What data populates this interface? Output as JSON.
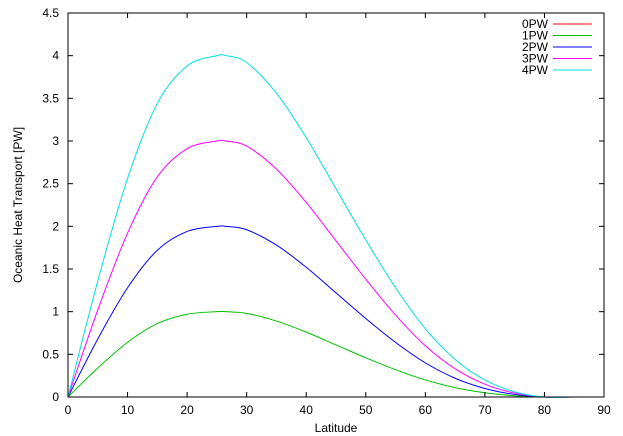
{
  "chart_data": {
    "type": "line",
    "xlabel": "Latitude",
    "ylabel": "Oceanic Heat Transport [PW]",
    "xlim": [
      0,
      90
    ],
    "ylim": [
      0,
      4.5
    ],
    "xticks": [
      "0",
      "10",
      "20",
      "30",
      "40",
      "50",
      "60",
      "70",
      "80",
      "90"
    ],
    "yticks": [
      "0",
      "0.5",
      "1",
      "1.5",
      "2",
      "2.5",
      "3",
      "3.5",
      "4",
      "4.5"
    ],
    "grid": false,
    "legend_position": "top-right",
    "x": [
      0,
      5,
      10,
      15,
      20,
      25,
      26.5,
      30,
      35,
      40,
      45,
      50,
      55,
      60,
      65,
      70,
      75,
      80,
      85,
      90
    ],
    "series": [
      {
        "name": "0PW",
        "color": "#ff0000",
        "values": [
          0,
          0,
          0,
          0,
          0,
          0,
          0,
          0,
          0,
          0,
          0,
          0,
          0,
          0,
          0,
          0,
          0,
          0,
          0,
          0
        ]
      },
      {
        "name": "1PW",
        "color": "#00c000",
        "values": [
          0,
          0.34,
          0.64,
          0.86,
          0.97,
          1.0,
          1.0,
          0.98,
          0.89,
          0.76,
          0.61,
          0.46,
          0.32,
          0.2,
          0.11,
          0.05,
          0.015,
          0.0,
          0.0,
          0.0
        ]
      },
      {
        "name": "2PW",
        "color": "#0000ff",
        "values": [
          0,
          0.68,
          1.28,
          1.72,
          1.94,
          2.0,
          2.0,
          1.96,
          1.78,
          1.52,
          1.22,
          0.92,
          0.64,
          0.4,
          0.22,
          0.1,
          0.03,
          0.0,
          0.0,
          0.0
        ]
      },
      {
        "name": "3PW",
        "color": "#ff00ff",
        "values": [
          0,
          1.02,
          1.92,
          2.58,
          2.91,
          3.0,
          3.0,
          2.94,
          2.67,
          2.28,
          1.83,
          1.38,
          0.96,
          0.6,
          0.33,
          0.15,
          0.045,
          0.0,
          0.0,
          0.0
        ]
      },
      {
        "name": "4PW",
        "color": "#00e0e0",
        "values": [
          0,
          1.36,
          2.56,
          3.44,
          3.88,
          4.0,
          4.0,
          3.92,
          3.56,
          3.04,
          2.44,
          1.84,
          1.28,
          0.8,
          0.44,
          0.2,
          0.06,
          0.0,
          0.0,
          0.0
        ]
      }
    ]
  }
}
